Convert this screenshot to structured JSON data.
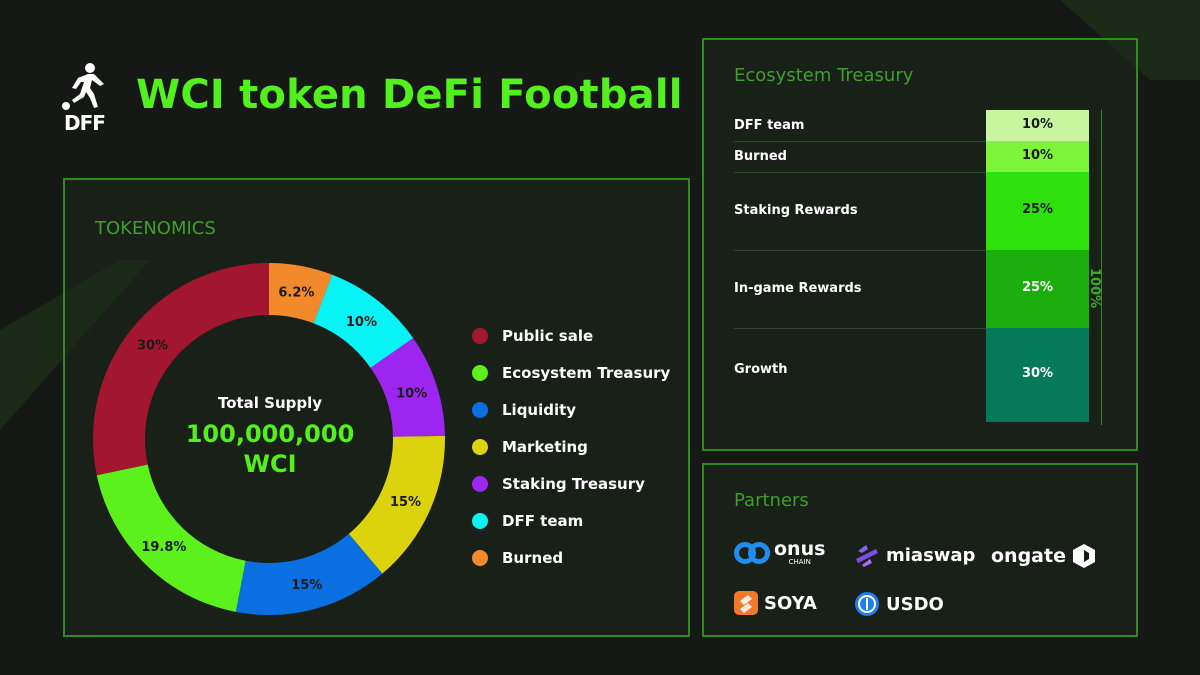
{
  "header": {
    "logo_text": "DFF",
    "title": "WCI token DeFi Football"
  },
  "tokenomics": {
    "title": "TOKENOMICS",
    "center_label": "Total Supply",
    "center_value": "100,000,000",
    "center_unit": "WCI"
  },
  "chart_data": [
    {
      "type": "pie",
      "title": "TOKENOMICS",
      "categories": [
        "Public sale",
        "Ecosystem Treasury",
        "Liquidity",
        "Marketing",
        "Staking Treasury",
        "DFF team",
        "Burned"
      ],
      "values": [
        30,
        19.8,
        15,
        15,
        10,
        10,
        6.2
      ],
      "labels": [
        "30%",
        "19.8%",
        "15%",
        "15%",
        "10%",
        "10%",
        "6.2%"
      ],
      "colors": [
        "#a3162f",
        "#5cf01c",
        "#0a6fe0",
        "#dcd20e",
        "#9d25f0",
        "#08f3f5",
        "#f28a2c"
      ],
      "legend_position": "right"
    },
    {
      "type": "bar",
      "title": "Ecosystem Treasury",
      "categories": [
        "DFF team",
        "Burned",
        "Staking Rewards",
        "In-game Rewards",
        "Growth"
      ],
      "values": [
        10,
        10,
        25,
        25,
        30
      ],
      "labels": [
        "10%",
        "10%",
        "25%",
        "25%",
        "30%"
      ],
      "colors": [
        "#c8f5a0",
        "#7ef53a",
        "#2ee00c",
        "#1cae0c",
        "#047a58"
      ],
      "text_colors": [
        "#1a1a1a",
        "#1a1a1a",
        "#1a1a1a",
        "#ffffff",
        "#ffffff"
      ],
      "total_label": "100%"
    }
  ],
  "partners": {
    "title": "Partners",
    "items": [
      {
        "name": "onus",
        "sub": "CHAIN"
      },
      {
        "name": "miaswap"
      },
      {
        "name": "ongate"
      },
      {
        "name": "SOYA"
      },
      {
        "name": "USDO"
      }
    ]
  }
}
